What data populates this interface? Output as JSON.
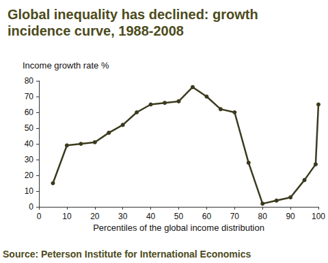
{
  "chart_data": {
    "type": "line",
    "title": "Global inequality has declined: growth incidence curve, 1988-2008",
    "y_label": "Income growth rate %",
    "x_label": "Percentiles of the global income distribution",
    "source": "Source: Peterson Institute for International Economics",
    "x": [
      5,
      10,
      15,
      20,
      25,
      30,
      35,
      40,
      45,
      50,
      55,
      60,
      65,
      70,
      75,
      80,
      85,
      90,
      95,
      99,
      100
    ],
    "values": [
      15,
      39,
      40,
      41,
      47,
      52,
      60,
      65,
      66,
      67,
      76,
      70,
      62,
      60,
      28,
      2,
      4,
      6,
      17,
      27,
      65
    ],
    "color": "#3b3a1e",
    "marker": "circle",
    "xlim": [
      0,
      100
    ],
    "xticks": [
      0,
      10,
      20,
      30,
      40,
      50,
      60,
      70,
      80,
      90,
      100
    ],
    "ylim": [
      0,
      80
    ],
    "yticks": [
      0,
      10,
      20,
      30,
      40,
      50,
      60,
      70,
      80
    ],
    "grid": false
  }
}
